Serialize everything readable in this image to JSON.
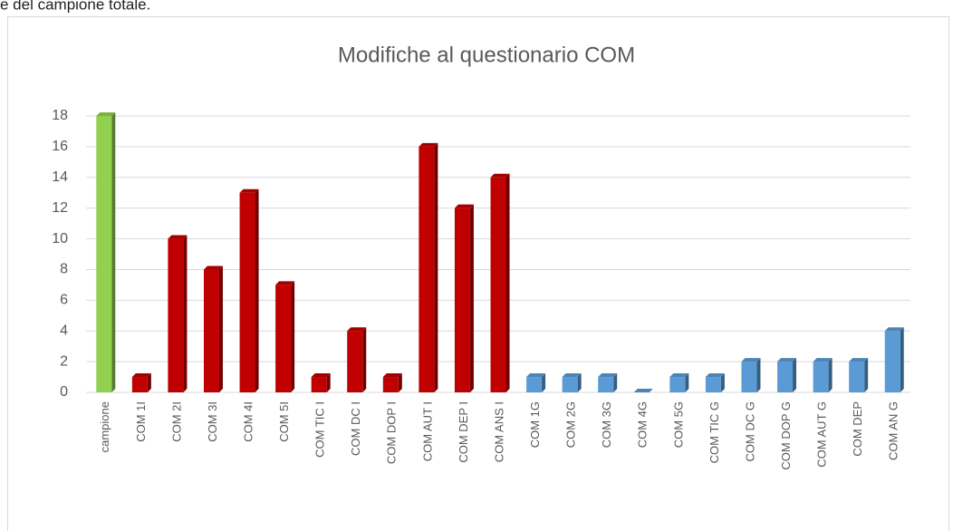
{
  "page_text": "e del campione totale.",
  "chart_data": {
    "type": "bar",
    "title": "Modifiche al questionario COM",
    "categories": [
      "campione",
      "COM 1I",
      "COM 2I",
      "COM 3I",
      "COM 4I",
      "COM 5I",
      "COM TIC I",
      "COM DC I",
      "COM DOP I",
      "COM AUT I",
      "COM DEP I",
      "COM ANS I",
      "COM 1G",
      "COM 2G",
      "COM 3G",
      "COM 4G",
      "COM 5G",
      "COM TIC G",
      "COM DC G",
      "COM DOP G",
      "COM AUT G",
      "COM DEP",
      "COM AN G"
    ],
    "values": [
      18,
      1,
      10,
      8,
      13,
      7,
      1,
      4,
      1,
      16,
      12,
      14,
      1,
      1,
      1,
      0,
      1,
      1,
      2,
      2,
      2,
      2,
      4
    ],
    "colors": [
      "#92d050",
      "#c00000",
      "#c00000",
      "#c00000",
      "#c00000",
      "#c00000",
      "#c00000",
      "#c00000",
      "#c00000",
      "#c00000",
      "#c00000",
      "#c00000",
      "#5b9bd5",
      "#5b9bd5",
      "#5b9bd5",
      "#5b9bd5",
      "#5b9bd5",
      "#5b9bd5",
      "#5b9bd5",
      "#5b9bd5",
      "#5b9bd5",
      "#5b9bd5",
      "#5b9bd5"
    ],
    "ylim": [
      0,
      18
    ],
    "yticks": [
      0,
      2,
      4,
      6,
      8,
      10,
      12,
      14,
      16,
      18
    ],
    "grid": true
  }
}
